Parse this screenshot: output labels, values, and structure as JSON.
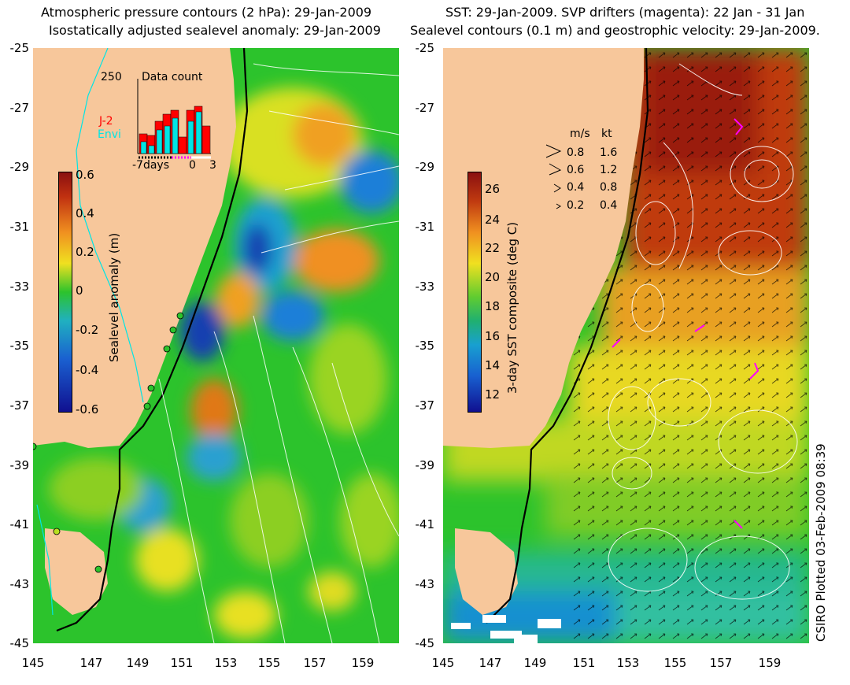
{
  "left_panel": {
    "title_line1": "Atmospheric pressure contours (2 hPa): 29-Jan-2009",
    "title_line2": "Isostatically adjusted sealevel anomaly: 29-Jan-2009",
    "colorbar_label": "Sealevel anomaly (m)",
    "colorbar_ticks": [
      "0.6",
      "0.4",
      "0.2",
      "0",
      "-0.2",
      "-0.4",
      "-0.6"
    ],
    "inset": {
      "title": "Data count",
      "y_max_label": "250",
      "x_labels": [
        "-7days",
        "0",
        "3"
      ],
      "series_labels": [
        {
          "name": "J-2",
          "color": "#ff0000"
        },
        {
          "name": "Envi",
          "color": "#00e5e5"
        }
      ]
    }
  },
  "right_panel": {
    "title_line1": "SST: 29-Jan-2009. SVP drifters (magenta): 22 Jan - 31 Jan",
    "title_line2": "Sealevel contours (0.1 m) and geostrophic velocity: 29-Jan-2009.",
    "colorbar_label": "3-day SST composite (deg C)",
    "colorbar_ticks": [
      "26",
      "24",
      "22",
      "20",
      "18",
      "16",
      "14",
      "12"
    ],
    "velocity_legend": {
      "header_ms": "m/s",
      "header_kt": "kt",
      "rows": [
        {
          "ms": "0.8",
          "kt": "1.6"
        },
        {
          "ms": "0.6",
          "kt": "1.2"
        },
        {
          "ms": "0.4",
          "kt": "0.8"
        },
        {
          "ms": "0.2",
          "kt": "0.4"
        }
      ]
    }
  },
  "axes": {
    "y_ticks": [
      "-25",
      "-27",
      "-29",
      "-31",
      "-33",
      "-35",
      "-37",
      "-39",
      "-41",
      "-43",
      "-45"
    ],
    "x_ticks": [
      "145",
      "147",
      "149",
      "151",
      "153",
      "155",
      "157",
      "159"
    ]
  },
  "credit": "CSIRO Plotted 03-Feb-2009 08:39",
  "colors": {
    "land": "#f7c79b",
    "ocean_green": "#2cc32c",
    "cyan_contour": "#00e5e5",
    "drifter_magenta": "#ff00ff"
  }
}
